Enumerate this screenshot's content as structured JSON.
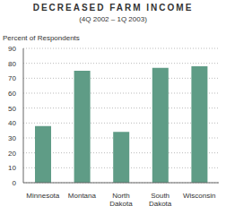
{
  "chart_data": {
    "type": "bar",
    "title": "DECREASED FARM INCOME",
    "subtitle": "(4Q 2002 – 1Q 2003)",
    "y_label": "Percent of Respondents",
    "categories": [
      "Minnesota",
      "Montana",
      "North Dakota",
      "South Dakota",
      "Wisconsin"
    ],
    "values": [
      38,
      75,
      34,
      77,
      78
    ],
    "color": "#5f9c86",
    "ylim": [
      0,
      90
    ],
    "yticks": [
      0,
      10,
      20,
      30,
      40,
      50,
      60,
      70,
      80,
      90
    ],
    "grid": true
  }
}
